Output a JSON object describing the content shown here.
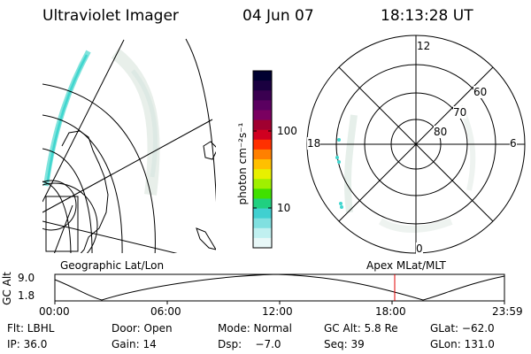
{
  "header": {
    "instrument": "Ultraviolet Imager",
    "date": "04 Jun 07",
    "time": "18:13:28 UT"
  },
  "colorbar": {
    "label": "photon cm⁻²s⁻¹",
    "ticks": [
      "100",
      "10"
    ],
    "colors": [
      "#000030",
      "#1a0040",
      "#3a0050",
      "#5a0060",
      "#7a0060",
      "#a00030",
      "#d00020",
      "#ff3000",
      "#ff8000",
      "#ffc000",
      "#e8f000",
      "#a0f000",
      "#40e000",
      "#20d080",
      "#40d0d0",
      "#80e0e0",
      "#c0f0f0",
      "#e8f8f8"
    ]
  },
  "polar": {
    "rings": [
      "60",
      "70",
      "80"
    ],
    "mlt": {
      "top": "12",
      "bottom": "0",
      "left": "18",
      "right": "6"
    }
  },
  "timeline": {
    "ylabel": "GC Alt",
    "ytop": "9.0",
    "ybottom": "1.8",
    "left_label": "Geographic Lat/Lon",
    "right_label": "Apex MLat/MLT",
    "ticks": [
      "00:00",
      "06:00",
      "12:00",
      "18:00",
      "23:59"
    ]
  },
  "info": {
    "filter": "Flt: LBHL",
    "door": "Door: Open",
    "mode": "Mode: Normal",
    "gc_alt": "GC Alt: 5.8 Re",
    "glat": "GLat: −62.0",
    "ip": "IP: 36.0",
    "gain": "Gain: 14",
    "dsp": "Dsp:    −7.0",
    "seq": "Seq: 39",
    "glon": "GLon: 131.0"
  }
}
